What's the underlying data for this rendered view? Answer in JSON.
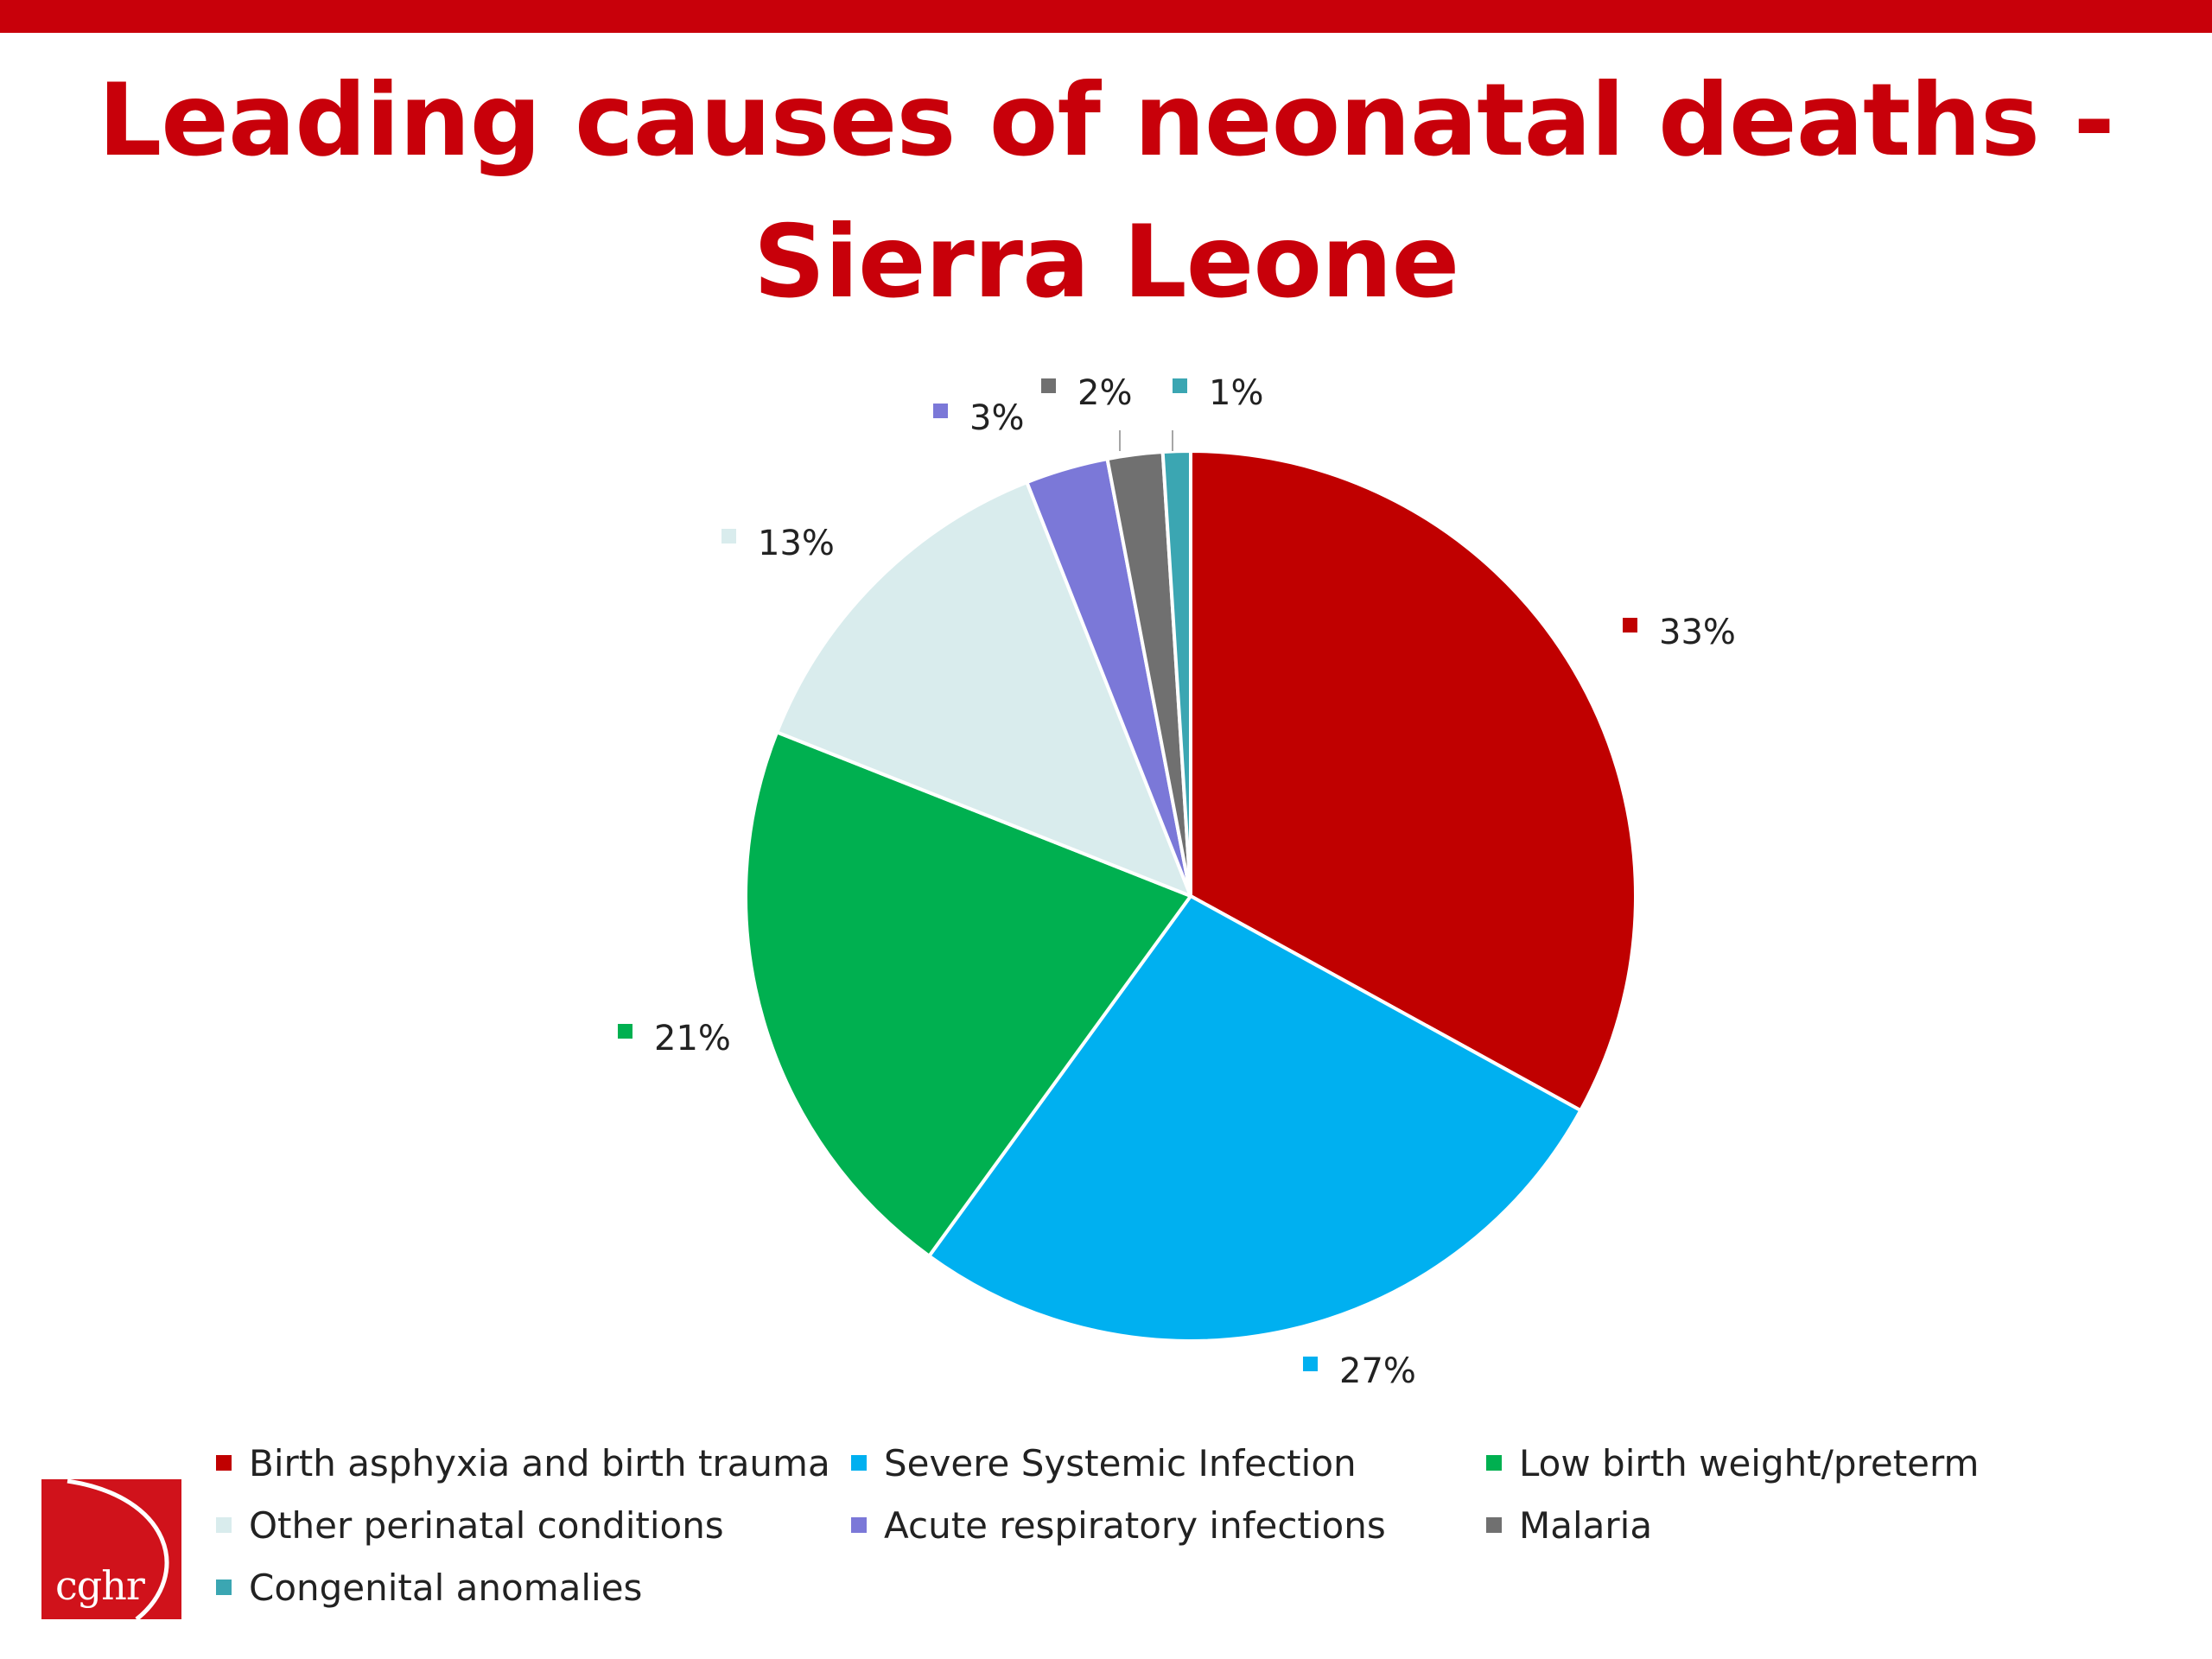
{
  "title_line1": "Leading causes of neonatal deaths -",
  "title_line2": "Sierra Leone",
  "logo_text": "cghr",
  "colors": {
    "brand": "#c8000a",
    "slice_border": "#ffffff"
  },
  "chart_data": {
    "type": "pie",
    "title": "Leading causes of neonatal deaths - Sierra Leone",
    "start": "12 o'clock, clockwise",
    "legend_position": "bottom",
    "slices": [
      {
        "label": "Birth asphyxia and birth trauma",
        "value": 33,
        "display": "33%",
        "color": "#c00000"
      },
      {
        "label": "Severe Systemic Infection",
        "value": 27,
        "display": "27%",
        "color": "#00b0f0"
      },
      {
        "label": "Low birth weight/preterm",
        "value": 21,
        "display": "21%",
        "color": "#00b050"
      },
      {
        "label": "Other perinatal conditions",
        "value": 13,
        "display": "13%",
        "color": "#d9eced"
      },
      {
        "label": "Acute respiratory infections",
        "value": 3,
        "display": "3%",
        "color": "#7b78d8"
      },
      {
        "label": "Malaria",
        "value": 2,
        "display": "2%",
        "color": "#707070"
      },
      {
        "label": "Congenital anomalies",
        "value": 1,
        "display": "1%",
        "color": "#3ba6b2"
      }
    ]
  }
}
